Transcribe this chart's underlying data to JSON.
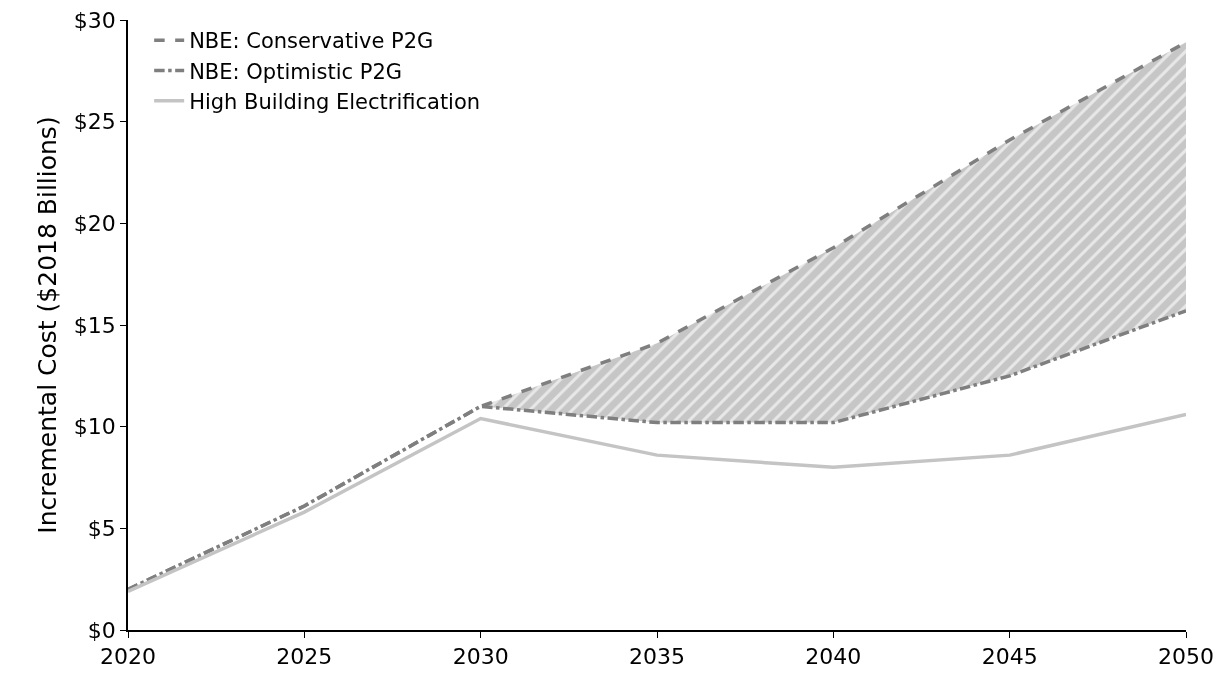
{
  "chart_data": {
    "type": "line",
    "ylabel": "Incremental Cost ($2018 Billions)",
    "x": [
      2020,
      2025,
      2030,
      2035,
      2040,
      2045,
      2050
    ],
    "series": [
      {
        "name": "NBE: Conservative P2G",
        "color": "#7f7f7f",
        "line_style": "dashed",
        "values": [
          2.0,
          6.1,
          11.0,
          14.1,
          18.8,
          24.1,
          28.9
        ],
        "lower": [
          2.0,
          6.1,
          11.0,
          10.2,
          10.2,
          12.5,
          15.7
        ],
        "upper": [
          2.0,
          6.1,
          11.0,
          14.1,
          18.8,
          24.1,
          28.9
        ]
      },
      {
        "name": "NBE: Optimistic P2G",
        "color": "#7f7f7f",
        "line_style": "dashdot",
        "values": [
          2.0,
          6.1,
          11.0,
          10.2,
          10.2,
          12.5,
          15.7
        ]
      },
      {
        "name": "High Building Electrification",
        "color": "#c4c4c4",
        "line_style": "solid",
        "values": [
          1.9,
          5.8,
          10.4,
          8.6,
          8.0,
          8.6,
          10.6
        ]
      }
    ],
    "xlim": [
      2020,
      2050
    ],
    "xticks": [
      2020,
      2025,
      2030,
      2035,
      2040,
      2045,
      2050
    ],
    "ylim": [
      0,
      30
    ],
    "yticks": [
      {
        "value": 0,
        "label": "$0"
      },
      {
        "value": 5,
        "label": "$5"
      },
      {
        "value": 10,
        "label": "$10"
      },
      {
        "value": 15,
        "label": "$15"
      },
      {
        "value": 20,
        "label": "$20"
      },
      {
        "value": 25,
        "label": "$25"
      },
      {
        "value": 30,
        "label": "$30"
      }
    ],
    "grid": false,
    "legend": "top left",
    "marker": "none"
  }
}
